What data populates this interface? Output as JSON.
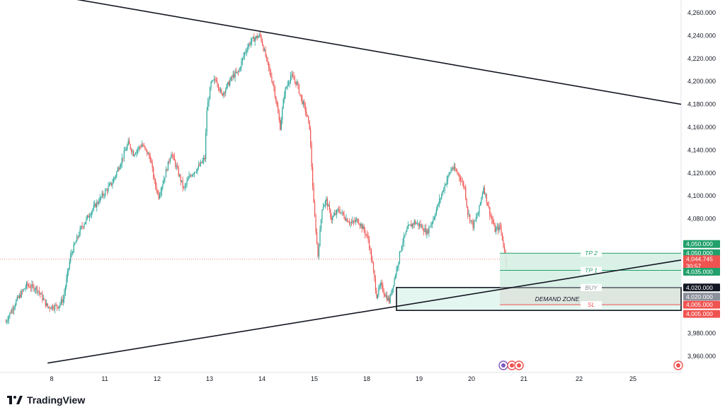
{
  "brand": {
    "name": "TradingView"
  },
  "colors": {
    "up": "#26a69a",
    "down": "#ef5350",
    "tp": "#22a06b",
    "tp_fill": "#d6f0e4",
    "sl": "#ef5350",
    "sl_fill": "#f0d8d8",
    "demand_fill": "#cdeee4",
    "trendline": "#131722"
  },
  "chart_data": {
    "type": "candlestick",
    "x_tick_labels": [
      "8",
      "11",
      "12",
      "13",
      "14",
      "15",
      "18",
      "19",
      "20",
      "21",
      "22",
      "25"
    ],
    "y_tick_labels": [
      "4,260.000",
      "4,240.000",
      "4,220.000",
      "4,200.000",
      "4,180.000",
      "4,160.000",
      "4,140.000",
      "4,120.000",
      "4,100.000",
      "4,080.000",
      "3,980.000",
      "3,960.000"
    ],
    "ylim": [
      3950,
      4272
    ],
    "path_points": [
      [
        0,
        3990
      ],
      [
        10,
        4008
      ],
      [
        20,
        4022
      ],
      [
        30,
        4019
      ],
      [
        40,
        4003
      ],
      [
        50,
        4004
      ],
      [
        55,
        4010
      ],
      [
        62,
        4048
      ],
      [
        72,
        4072
      ],
      [
        82,
        4087
      ],
      [
        92,
        4100
      ],
      [
        102,
        4112
      ],
      [
        110,
        4130
      ],
      [
        117,
        4146
      ],
      [
        122,
        4137
      ],
      [
        130,
        4145
      ],
      [
        138,
        4133
      ],
      [
        142,
        4112
      ],
      [
        146,
        4100
      ],
      [
        152,
        4118
      ],
      [
        158,
        4138
      ],
      [
        164,
        4122
      ],
      [
        170,
        4106
      ],
      [
        176,
        4118
      ],
      [
        184,
        4125
      ],
      [
        190,
        4133
      ],
      [
        192,
        4175
      ],
      [
        196,
        4198
      ],
      [
        201,
        4202
      ],
      [
        206,
        4188
      ],
      [
        210,
        4194
      ],
      [
        217,
        4205
      ],
      [
        222,
        4208
      ],
      [
        228,
        4225
      ],
      [
        233,
        4234
      ],
      [
        238,
        4238
      ],
      [
        243,
        4240
      ],
      [
        248,
        4222
      ],
      [
        252,
        4208
      ],
      [
        256,
        4195
      ],
      [
        262,
        4160
      ],
      [
        266,
        4190
      ],
      [
        272,
        4205
      ],
      [
        278,
        4198
      ],
      [
        282,
        4185
      ],
      [
        286,
        4175
      ],
      [
        290,
        4160
      ],
      [
        294,
        4092
      ],
      [
        298,
        4048
      ],
      [
        302,
        4090
      ],
      [
        306,
        4096
      ],
      [
        311,
        4080
      ],
      [
        318,
        4088
      ],
      [
        324,
        4081
      ],
      [
        330,
        4076
      ],
      [
        336,
        4079
      ],
      [
        342,
        4070
      ],
      [
        346,
        4062
      ],
      [
        350,
        4040
      ],
      [
        354,
        4013
      ],
      [
        358,
        4022
      ],
      [
        362,
        4014
      ],
      [
        366,
        4008
      ],
      [
        370,
        4024
      ],
      [
        374,
        4040
      ],
      [
        378,
        4058
      ],
      [
        384,
        4072
      ],
      [
        390,
        4077
      ],
      [
        396,
        4074
      ],
      [
        402,
        4068
      ],
      [
        408,
        4080
      ],
      [
        414,
        4096
      ],
      [
        420,
        4112
      ],
      [
        426,
        4125
      ],
      [
        432,
        4119
      ],
      [
        438,
        4107
      ],
      [
        441,
        4085
      ],
      [
        446,
        4074
      ],
      [
        451,
        4085
      ],
      [
        456,
        4108
      ],
      [
        462,
        4085
      ],
      [
        467,
        4070
      ],
      [
        472,
        4073
      ],
      [
        476,
        4052
      ],
      [
        478,
        4040
      ]
    ],
    "levels": {
      "tp2": {
        "label": "TP 2",
        "price": 4050
      },
      "tp1": {
        "label": "TP 1",
        "price": 4035
      },
      "buy": {
        "label": "BUY",
        "price": 4020
      },
      "sl": {
        "label": "SL",
        "price": 4005
      },
      "current": {
        "price": 4044.745,
        "label": "4,044.745",
        "countdown": "30:57"
      }
    },
    "demand_zone": {
      "label": "DEMAND ZONE",
      "top": 4020,
      "bottom": 4000
    },
    "trendlines": [
      {
        "name": "upper",
        "from": [
          40,
          4276
        ],
        "to": [
          670,
          4180
        ]
      },
      {
        "name": "lower",
        "from": [
          40,
          3954
        ],
        "to": [
          670,
          4044
        ]
      }
    ],
    "price_tags": [
      {
        "name": "tag-4050-a",
        "text": "4,050.000",
        "price": 4050,
        "offset": -13,
        "color": "#22a06b"
      },
      {
        "name": "tag-4050-b",
        "text": "4,050.000",
        "price": 4050,
        "offset": 0,
        "color": "#22a06b"
      },
      {
        "name": "tag-4044",
        "text": "4,044.745",
        "price": 4044.745,
        "offset": 0,
        "color": "#ef5350"
      },
      {
        "name": "tag-countdown",
        "text": "30:57",
        "price": 4044.745,
        "offset": 10,
        "color": "#ef5350"
      },
      {
        "name": "tag-4035",
        "text": "4,035.000",
        "price": 4035,
        "offset": 2,
        "color": "#22a06b"
      },
      {
        "name": "tag-4020-a",
        "text": "4,020.000",
        "price": 4020,
        "offset": 0,
        "color": "#131722"
      },
      {
        "name": "tag-4020-b",
        "text": "4,020.000",
        "price": 4020,
        "offset": 13,
        "color": "#8a8f9a"
      },
      {
        "name": "tag-4005-a",
        "text": "4,005.000",
        "price": 4005,
        "offset": 0,
        "color": "#ef5350"
      },
      {
        "name": "tag-4005-b",
        "text": "4,005.000",
        "price": 4005,
        "offset": 13,
        "color": "#ef5350"
      }
    ],
    "grid": false,
    "legend": "none"
  }
}
